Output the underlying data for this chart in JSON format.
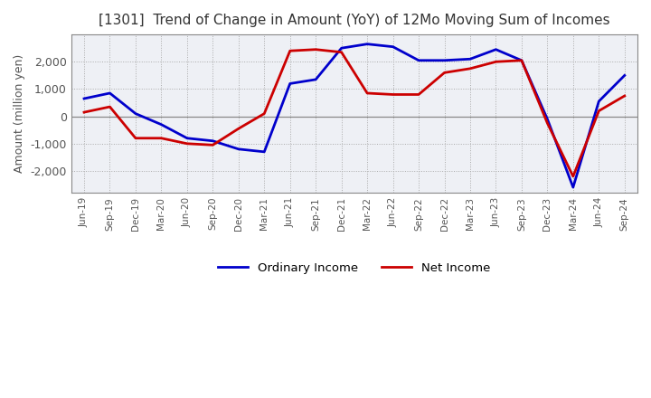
{
  "title": "[1301]  Trend of Change in Amount (YoY) of 12Mo Moving Sum of Incomes",
  "ylabel": "Amount (million yen)",
  "ylim": [
    -2800,
    3000
  ],
  "yticks": [
    -2000,
    -1000,
    0,
    1000,
    2000
  ],
  "background_color": "#ffffff",
  "plot_bg_color": "#eef0f5",
  "grid_color": "#aaaaaa",
  "border_color": "#888888",
  "x_labels": [
    "Jun-19",
    "Sep-19",
    "Dec-19",
    "Mar-20",
    "Jun-20",
    "Sep-20",
    "Dec-20",
    "Mar-21",
    "Jun-21",
    "Sep-21",
    "Dec-21",
    "Mar-22",
    "Jun-22",
    "Sep-22",
    "Dec-22",
    "Mar-23",
    "Jun-23",
    "Sep-23",
    "Dec-23",
    "Mar-24",
    "Jun-24",
    "Sep-24"
  ],
  "ordinary_income": [
    650,
    850,
    100,
    -300,
    -800,
    -900,
    -1200,
    -1300,
    1200,
    1350,
    2500,
    2650,
    2550,
    2050,
    2050,
    2100,
    2450,
    2050,
    -100,
    -2600,
    550,
    1500
  ],
  "net_income": [
    150,
    350,
    -800,
    -800,
    -1000,
    -1050,
    -450,
    100,
    2400,
    2450,
    2350,
    850,
    800,
    800,
    1600,
    1750,
    2000,
    2050,
    -250,
    -2200,
    200,
    750
  ],
  "ordinary_color": "#0000cc",
  "net_color": "#cc0000",
  "line_width": 2.0,
  "legend_labels": [
    "Ordinary Income",
    "Net Income"
  ],
  "title_color": "#333333",
  "tick_color": "#555555"
}
